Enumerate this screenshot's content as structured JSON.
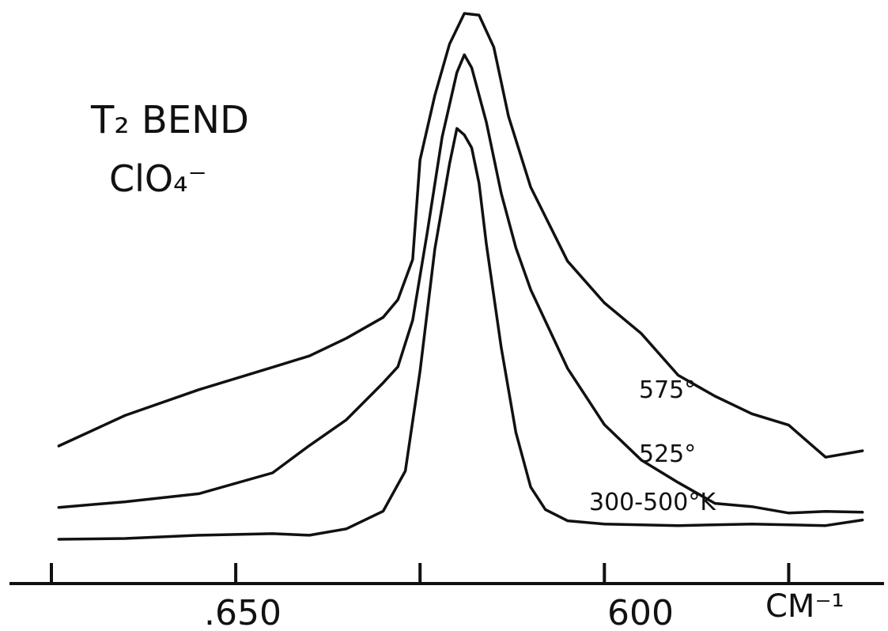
{
  "chart_data": {
    "type": "line",
    "title_line1": "T₂ BEND",
    "title_line2": "ClO₄⁻",
    "xlabel": "CM⁻¹",
    "x_reversed": true,
    "xlim": [
      695,
      584
    ],
    "ylim": [
      0,
      1.0
    ],
    "grid": false,
    "x_ticks": [
      695,
      670,
      645,
      620,
      595
    ],
    "x_tick_labels": [
      {
        "x": 650,
        "label": ".650"
      },
      {
        "x": 600,
        "label": "600"
      }
    ],
    "series": [
      {
        "name": "575°",
        "x": [
          694,
          685,
          675,
          665,
          660,
          655,
          650,
          648,
          646,
          645,
          643,
          641,
          639,
          637,
          635,
          633,
          630,
          625,
          620,
          615,
          610,
          605,
          600,
          595,
          590,
          585
        ],
        "y": [
          0.1,
          0.16,
          0.22,
          0.26,
          0.29,
          0.32,
          0.37,
          0.4,
          0.49,
          0.69,
          0.83,
          0.93,
          1.0,
          0.99,
          0.93,
          0.78,
          0.64,
          0.48,
          0.4,
          0.33,
          0.25,
          0.2,
          0.17,
          0.14,
          0.08,
          0.09
        ]
      },
      {
        "name": "525°",
        "x": [
          694,
          685,
          675,
          665,
          660,
          655,
          650,
          648,
          646,
          644,
          642,
          640,
          639,
          638,
          636,
          634,
          632,
          630,
          625,
          620,
          615,
          610,
          605,
          600,
          595,
          590,
          585
        ],
        "y": [
          0.03,
          0.04,
          0.06,
          0.1,
          0.16,
          0.21,
          0.29,
          0.32,
          0.42,
          0.6,
          0.8,
          0.93,
          0.97,
          0.94,
          0.83,
          0.68,
          0.57,
          0.48,
          0.32,
          0.2,
          0.13,
          0.08,
          0.04,
          0.03,
          0.02,
          0.02,
          0.02
        ]
      },
      {
        "name": "300-500°K",
        "x": [
          694,
          685,
          675,
          665,
          660,
          655,
          650,
          647,
          645,
          643,
          641,
          640,
          639,
          638,
          637,
          636,
          634,
          632,
          630,
          628,
          625,
          620,
          610,
          600,
          590,
          585
        ],
        "y": [
          0.0,
          0.0,
          0.01,
          0.01,
          0.01,
          0.02,
          0.06,
          0.14,
          0.35,
          0.6,
          0.78,
          0.85,
          0.84,
          0.81,
          0.74,
          0.61,
          0.4,
          0.22,
          0.11,
          0.06,
          0.04,
          0.03,
          0.03,
          0.03,
          0.03,
          0.04
        ]
      }
    ]
  }
}
